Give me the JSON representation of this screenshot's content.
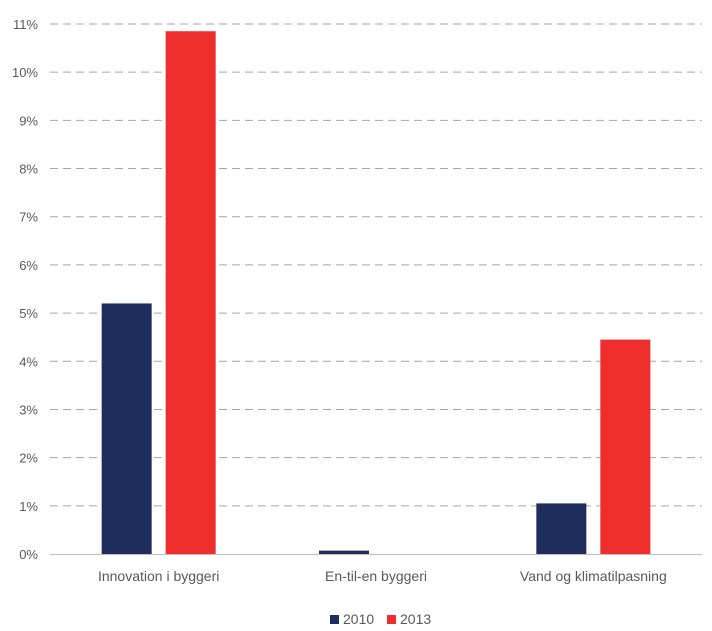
{
  "chart_data": {
    "type": "bar",
    "title": "",
    "xlabel": "",
    "ylabel": "",
    "categories": [
      "Innovation i byggeri",
      "En-til-en byggeri",
      "Vand og klimatilpasning"
    ],
    "series": [
      {
        "name": "2010",
        "values": [
          5.2,
          0.07,
          1.05
        ],
        "color": "#1f2d5c"
      },
      {
        "name": "2013",
        "values": [
          10.85,
          0,
          4.45
        ],
        "color": "#ee2d2d"
      }
    ],
    "ylim": [
      0,
      11
    ],
    "y_tick_step": 1,
    "y_tick_format": "percent",
    "y_ticks": [
      "0%",
      "1%",
      "2%",
      "3%",
      "4%",
      "5%",
      "6%",
      "7%",
      "8%",
      "9%",
      "10%",
      "11%"
    ],
    "grid": true,
    "grid_style": "dashed",
    "legend_position": "bottom-center"
  }
}
